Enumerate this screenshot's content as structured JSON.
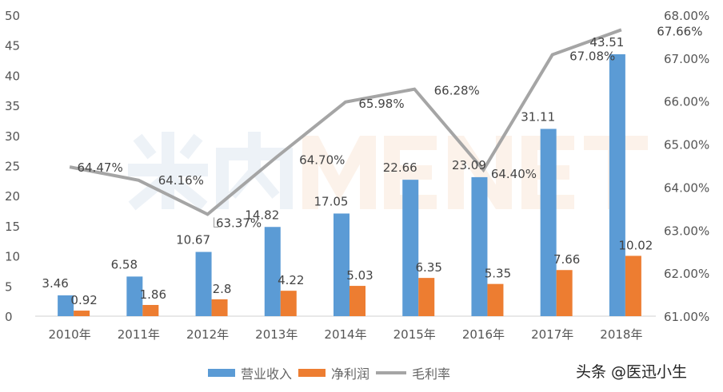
{
  "chart_data": {
    "type": "bar",
    "categories": [
      "2010年",
      "2011年",
      "2012年",
      "2013年",
      "2014年",
      "2015年",
      "2016年",
      "2017年",
      "2018年"
    ],
    "series": [
      {
        "name": "营业收入",
        "kind": "bar",
        "axis": "left",
        "color": "#5B9BD5",
        "values": [
          3.46,
          6.58,
          10.67,
          14.82,
          17.05,
          22.66,
          23.09,
          31.11,
          43.51
        ],
        "labels": [
          "3.46",
          "6.58",
          "10.67",
          "14.82",
          "17.05",
          "22.66",
          "23.09",
          "31.11",
          "43.51"
        ]
      },
      {
        "name": "净利润",
        "kind": "bar",
        "axis": "left",
        "color": "#ED7D31",
        "values": [
          0.92,
          1.86,
          2.8,
          4.22,
          5.03,
          6.35,
          5.35,
          7.66,
          10.02
        ],
        "labels": [
          "0.92",
          "1.86",
          "2.8",
          "4.22",
          "5.03",
          "6.35",
          "5.35",
          "7.66",
          "10.02"
        ]
      },
      {
        "name": "毛利率",
        "kind": "line",
        "axis": "right",
        "color": "#A5A5A5",
        "values": [
          64.47,
          64.16,
          63.37,
          64.7,
          65.98,
          66.28,
          64.4,
          67.08,
          67.66
        ],
        "labels": [
          "64.47%",
          "64.16%",
          "63.37%",
          "64.70%",
          "65.98%",
          "66.28%",
          "64.40%",
          "67.08%",
          "67.66%"
        ]
      }
    ],
    "left_axis": {
      "ylim": [
        0,
        50
      ],
      "ticks": [
        "0",
        "5",
        "10",
        "15",
        "20",
        "25",
        "30",
        "35",
        "40",
        "45",
        "50"
      ]
    },
    "right_axis": {
      "ylim": [
        61,
        68
      ],
      "ticks": [
        "61.00%",
        "62.00%",
        "63.00%",
        "64.00%",
        "65.00%",
        "66.00%",
        "67.00%",
        "68.00%"
      ]
    },
    "grid": false,
    "legend": "bottom"
  },
  "watermark": {
    "cn": "米内",
    "en": "MENET"
  },
  "footer": "头条 @医迅小生"
}
